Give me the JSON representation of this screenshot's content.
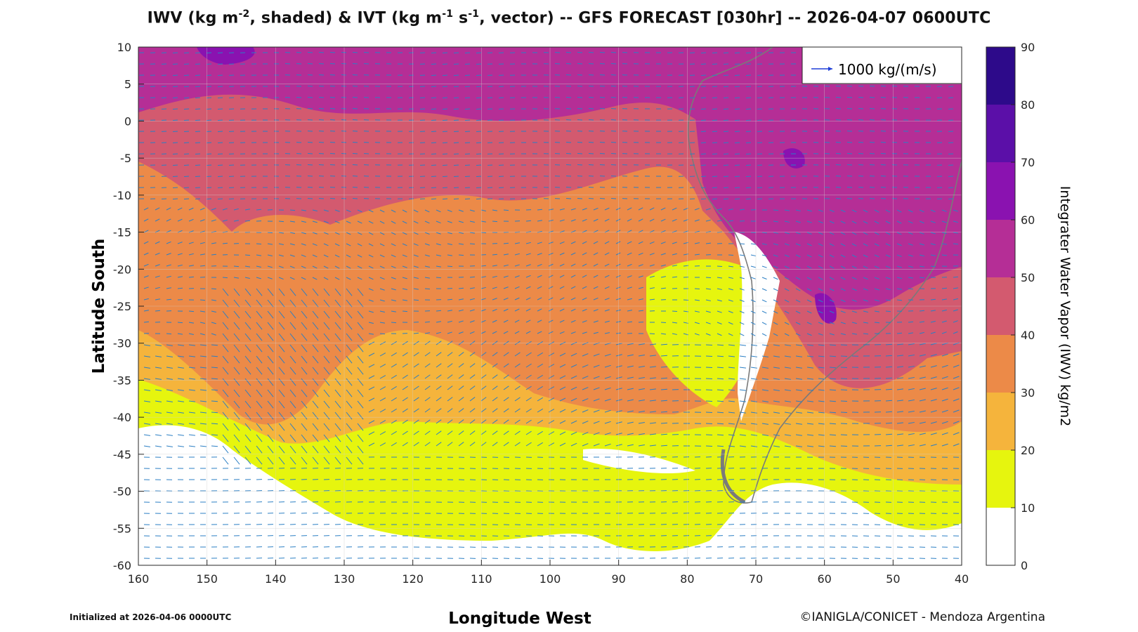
{
  "title": {
    "iwv": "IWV (kg m",
    "iwv_exp": "-2",
    "iwv_suffix": ", shaded) & IVT (kg m",
    "ivt_exp1": "-1",
    "ivt_mid": " s",
    "ivt_exp2": "-1",
    "rest": ", vector) -- GFS FORECAST [030hr] -- 2026-04-07 0600UTC"
  },
  "axes": {
    "xlabel": "Longitude West",
    "ylabel": "Latitude South",
    "x_ticks": [
      "160",
      "150",
      "140",
      "130",
      "120",
      "110",
      "100",
      "90",
      "80",
      "70",
      "60",
      "50",
      "40"
    ],
    "y_ticks": [
      "10",
      "5",
      "0",
      "-5",
      "-10",
      "-15",
      "-20",
      "-25",
      "-30",
      "-35",
      "-40",
      "-45",
      "-50",
      "-55",
      "-60"
    ],
    "xlim": [
      160,
      40
    ],
    "ylim": [
      -60,
      10
    ]
  },
  "legend": {
    "vector_label": "1000 kg/(m/s)",
    "vector_color": "#1f3fd8"
  },
  "colorbar": {
    "title": "Integrater Water Vapor (IWV) kg/m2",
    "ticks": [
      "90",
      "80",
      "70",
      "60",
      "50",
      "40",
      "30",
      "20",
      "10",
      "0"
    ],
    "colors": [
      "#2d0a8a",
      "#5b0fa8",
      "#8a12b0",
      "#b52e96",
      "#d35a6f",
      "#ec8a48",
      "#f5b43c",
      "#e6f50e",
      "#ffffff"
    ]
  },
  "footer": {
    "init": "Initialized at 2026-04-06 0000UTC",
    "credit": "©IANIGLA/CONICET - Mendoza Argentina"
  },
  "chart_data": {
    "type": "heatmap",
    "title": "IWV (kg m-2, shaded) & IVT (kg m-1 s-1, vector) -- GFS FORECAST [030hr] -- 2026-04-07 0600UTC",
    "xlabel": "Longitude West",
    "ylabel": "Latitude South",
    "xlim": [
      160,
      40
    ],
    "ylim": [
      -60,
      10
    ],
    "grid": true,
    "legend": "top-right",
    "colorbar": {
      "label": "Integrater Water Vapor (IWV) kg/m2",
      "levels": [
        0,
        10,
        20,
        30,
        40,
        50,
        60,
        70,
        80,
        90
      ]
    },
    "vector_reference": "1000 kg/(m/s)",
    "iwv_bands_by_latitude": [
      {
        "lat": 5,
        "iwv": 55
      },
      {
        "lat": -5,
        "iwv": 48
      },
      {
        "lat": -15,
        "iwv": 42
      },
      {
        "lat": -25,
        "iwv": 35
      },
      {
        "lat": -35,
        "iwv": 25
      },
      {
        "lat": -45,
        "iwv": 15
      },
      {
        "lat": -55,
        "iwv": 8
      }
    ]
  }
}
